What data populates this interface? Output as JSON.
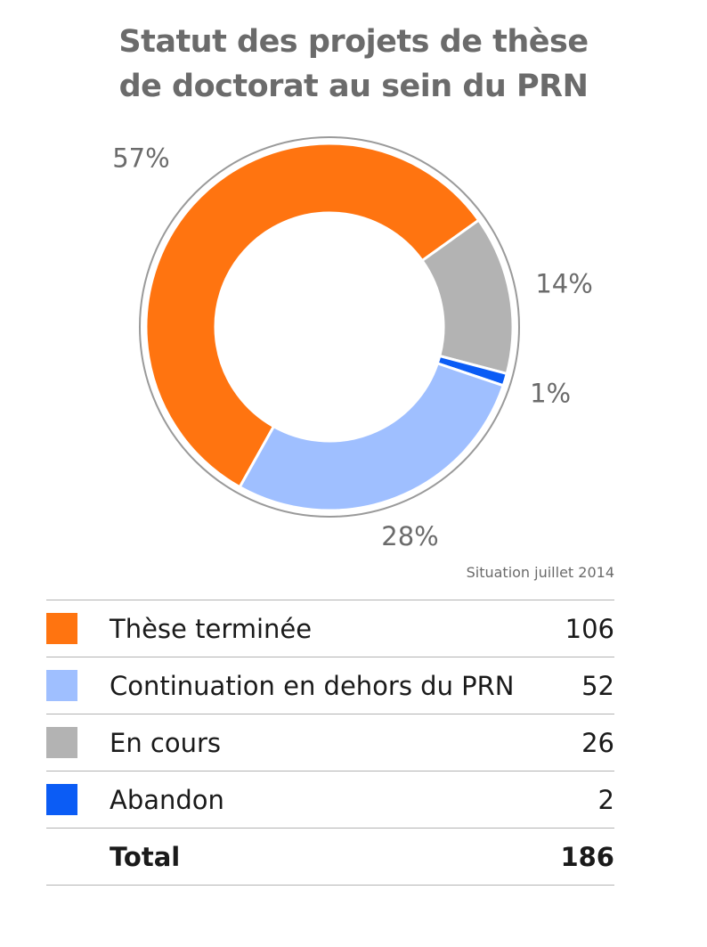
{
  "title_lines": [
    "Statut des projets de thèse",
    "de doctorat au sein du PRN"
  ],
  "note": "Situation juillet 2014",
  "chart_data": {
    "type": "pie",
    "style": "donut",
    "title": "Statut des projets de thèse de doctorat au sein du PRN",
    "labels": [
      "Thèse terminée",
      "Continuation en dehors du PRN",
      "En cours",
      "Abandon"
    ],
    "values": [
      106,
      52,
      26,
      2
    ],
    "percent_labels": [
      "57%",
      "28%",
      "14%",
      "1%"
    ],
    "colors": [
      "#ff7410",
      "#9fbfff",
      "#b3b3b3",
      "#0b5cf5"
    ]
  },
  "legend": {
    "rows": [
      {
        "label": "Thèse terminée",
        "value": "106",
        "color": "#ff7410"
      },
      {
        "label": "Continuation en dehors du PRN",
        "value": "52",
        "color": "#9fbfff"
      },
      {
        "label": "En cours",
        "value": "26",
        "color": "#b3b3b3"
      },
      {
        "label": "Abandon",
        "value": "2",
        "color": "#0b5cf5"
      }
    ],
    "total_label": "Total",
    "total_value": "186"
  }
}
